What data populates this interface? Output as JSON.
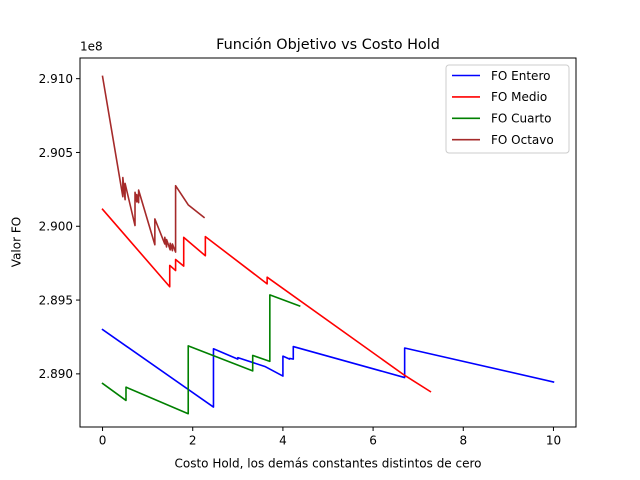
{
  "chart_data": {
    "type": "line",
    "title": "Función Objetivo vs Costo Hold",
    "xlabel": "Costo Hold, los demás constantes distintos de cero",
    "ylabel": "Valor FO",
    "y_offset_label": "1e8",
    "xlim": [
      -0.5,
      10.5
    ],
    "ylim": [
      2.8864,
      2.9114
    ],
    "x_ticks": [
      0,
      2,
      4,
      6,
      8,
      10
    ],
    "x_tick_labels": [
      "0",
      "2",
      "4",
      "6",
      "8",
      "10"
    ],
    "y_ticks": [
      2.89,
      2.895,
      2.9,
      2.905,
      2.91
    ],
    "y_tick_labels": [
      "2.890",
      "2.895",
      "2.900",
      "2.905",
      "2.910"
    ],
    "grid": false,
    "legend_position": "top-right",
    "series": [
      {
        "name": "FO Entero",
        "color": "#0000ff",
        "x": [
          0,
          2.46,
          2.46,
          3.0,
          3.0,
          3.6,
          3.6,
          4.0,
          4.0,
          4.15,
          4.15,
          4.23,
          4.23,
          6.7,
          6.7,
          10.0
        ],
        "y": [
          2.893,
          2.88775,
          2.8917,
          2.891,
          2.8911,
          2.8905,
          2.8905,
          2.88985,
          2.8912,
          2.891,
          2.89105,
          2.891,
          2.89185,
          2.88975,
          2.89175,
          2.88945
        ]
      },
      {
        "name": "FO Medio",
        "color": "#ff0000",
        "x": [
          0,
          1.49,
          1.49,
          1.62,
          1.62,
          1.8,
          1.8,
          2.28,
          2.28,
          3.65,
          3.65,
          6.7,
          7.27
        ],
        "y": [
          2.90115,
          2.8959,
          2.89735,
          2.897,
          2.89775,
          2.8973,
          2.89925,
          2.898,
          2.8993,
          2.8961,
          2.89655,
          2.8899,
          2.8888
        ]
      },
      {
        "name": "FO Cuarto",
        "color": "#008000",
        "x": [
          0,
          0.52,
          0.52,
          1.9,
          1.9,
          3.33,
          3.33,
          3.71,
          3.71,
          4.37
        ],
        "y": [
          2.88935,
          2.8882,
          2.8891,
          2.8873,
          2.8919,
          2.8902,
          2.89125,
          2.89085,
          2.89535,
          2.8946
        ]
      },
      {
        "name": "FO Octavo",
        "color": "#a52a2a",
        "x": [
          0,
          0.45,
          0.45,
          0.5,
          0.5,
          0.72,
          0.72,
          0.76,
          0.76,
          0.8,
          0.8,
          1.16,
          1.16,
          1.38,
          1.38,
          1.42,
          1.42,
          1.5,
          1.5,
          1.55,
          1.55,
          1.62,
          1.62,
          1.9,
          2.25
        ],
        "y": [
          2.91015,
          2.902,
          2.9033,
          2.9018,
          2.9029,
          2.90005,
          2.9023,
          2.90165,
          2.90215,
          2.9016,
          2.90245,
          2.89875,
          2.9005,
          2.8988,
          2.89925,
          2.8986,
          2.8991,
          2.8984,
          2.89885,
          2.89835,
          2.8988,
          2.89825,
          2.90275,
          2.90145,
          2.9006
        ]
      }
    ]
  }
}
